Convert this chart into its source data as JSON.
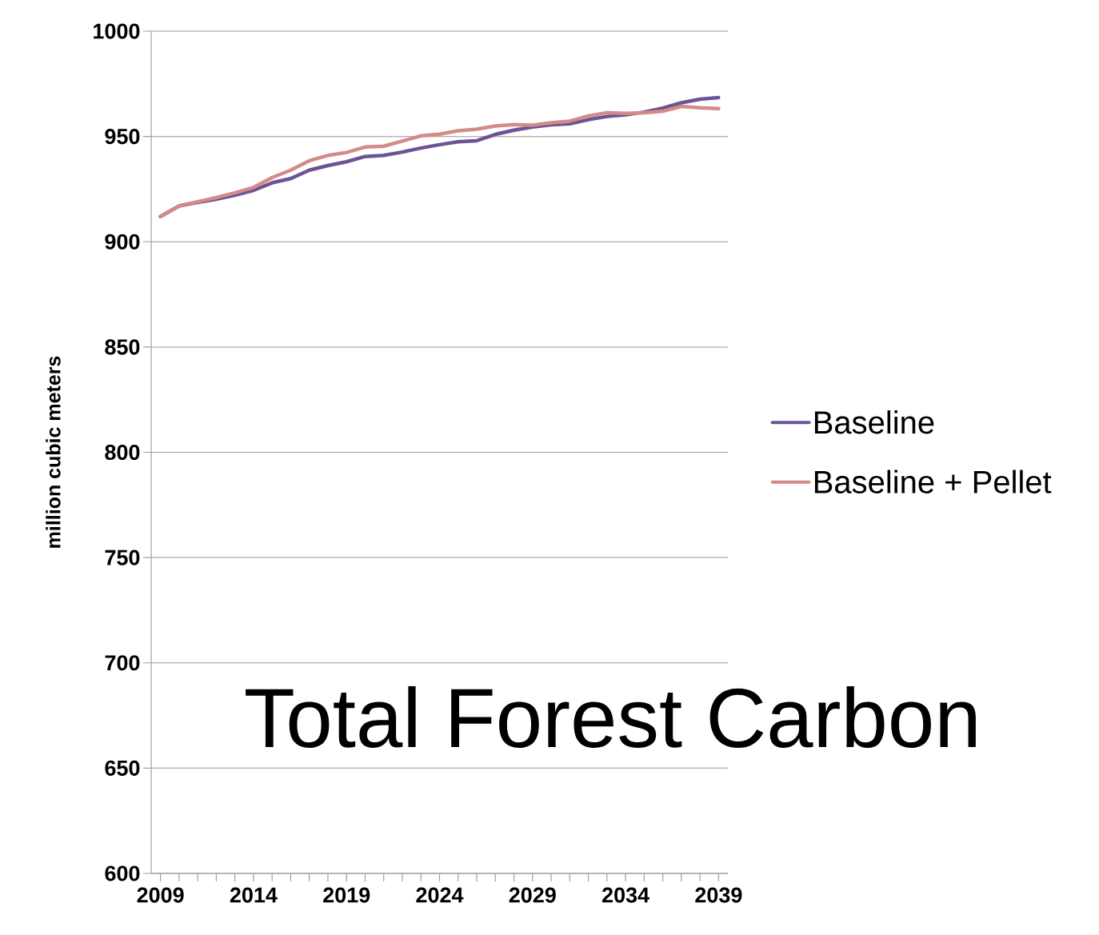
{
  "chart_data": {
    "type": "line",
    "title": "Total Forest Carbon",
    "ylabel": "million cubic meters",
    "x": [
      2009,
      2010,
      2011,
      2012,
      2013,
      2014,
      2015,
      2016,
      2017,
      2018,
      2019,
      2020,
      2021,
      2022,
      2023,
      2024,
      2025,
      2026,
      2027,
      2028,
      2029,
      2030,
      2031,
      2032,
      2033,
      2034,
      2035,
      2036,
      2037,
      2038,
      2039
    ],
    "series": [
      {
        "name": "Baseline",
        "color": "#6b5396",
        "values": [
          912,
          917,
          918.7,
          920.2,
          922.1,
          924.4,
          928,
          930,
          934,
          936.2,
          938,
          940.5,
          941,
          942.6,
          944.5,
          946.1,
          947.5,
          948,
          951,
          953,
          954.5,
          955.6,
          956,
          958,
          959.5,
          960.3,
          961.6,
          963.5,
          966,
          967.7,
          968.5
        ]
      },
      {
        "name": "Baseline + Pellet",
        "color": "#d38b88",
        "values": [
          912,
          917,
          919,
          921,
          923.2,
          925.8,
          930.5,
          934,
          938.5,
          941,
          942.4,
          945,
          945.4,
          947.8,
          950.3,
          951.1,
          952.7,
          953.5,
          955,
          955.7,
          955.4,
          956.5,
          957.3,
          959.8,
          961.3,
          961,
          961.3,
          962,
          964.3,
          963.6,
          963.3
        ]
      }
    ],
    "xlim": [
      2008.5,
      2039.5
    ],
    "xticks": [
      2009,
      {
        "value": 2010,
        "label": null
      },
      {
        "value": 2011,
        "label": null
      },
      {
        "value": 2012,
        "label": null
      },
      {
        "value": 2013,
        "label": null
      },
      2014,
      {
        "value": 2015,
        "label": null
      },
      {
        "value": 2016,
        "label": null
      },
      {
        "value": 2017,
        "label": null
      },
      {
        "value": 2018,
        "label": null
      },
      2019,
      {
        "value": 2020,
        "label": null
      },
      {
        "value": 2021,
        "label": null
      },
      {
        "value": 2022,
        "label": null
      },
      {
        "value": 2023,
        "label": null
      },
      2024,
      {
        "value": 2025,
        "label": null
      },
      {
        "value": 2026,
        "label": null
      },
      {
        "value": 2027,
        "label": null
      },
      {
        "value": 2028,
        "label": null
      },
      2029,
      {
        "value": 2030,
        "label": null
      },
      {
        "value": 2031,
        "label": null
      },
      {
        "value": 2032,
        "label": null
      },
      {
        "value": 2033,
        "label": null
      },
      2034,
      {
        "value": 2035,
        "label": null
      },
      {
        "value": 2036,
        "label": null
      },
      {
        "value": 2037,
        "label": null
      },
      {
        "value": 2038,
        "label": null
      },
      2039
    ],
    "ylim": [
      600,
      1000
    ],
    "yticks": [
      600,
      650,
      700,
      750,
      800,
      850,
      900,
      950,
      1000
    ],
    "grid": "y",
    "legend": "right",
    "marker": "none",
    "line_style": "solid"
  }
}
